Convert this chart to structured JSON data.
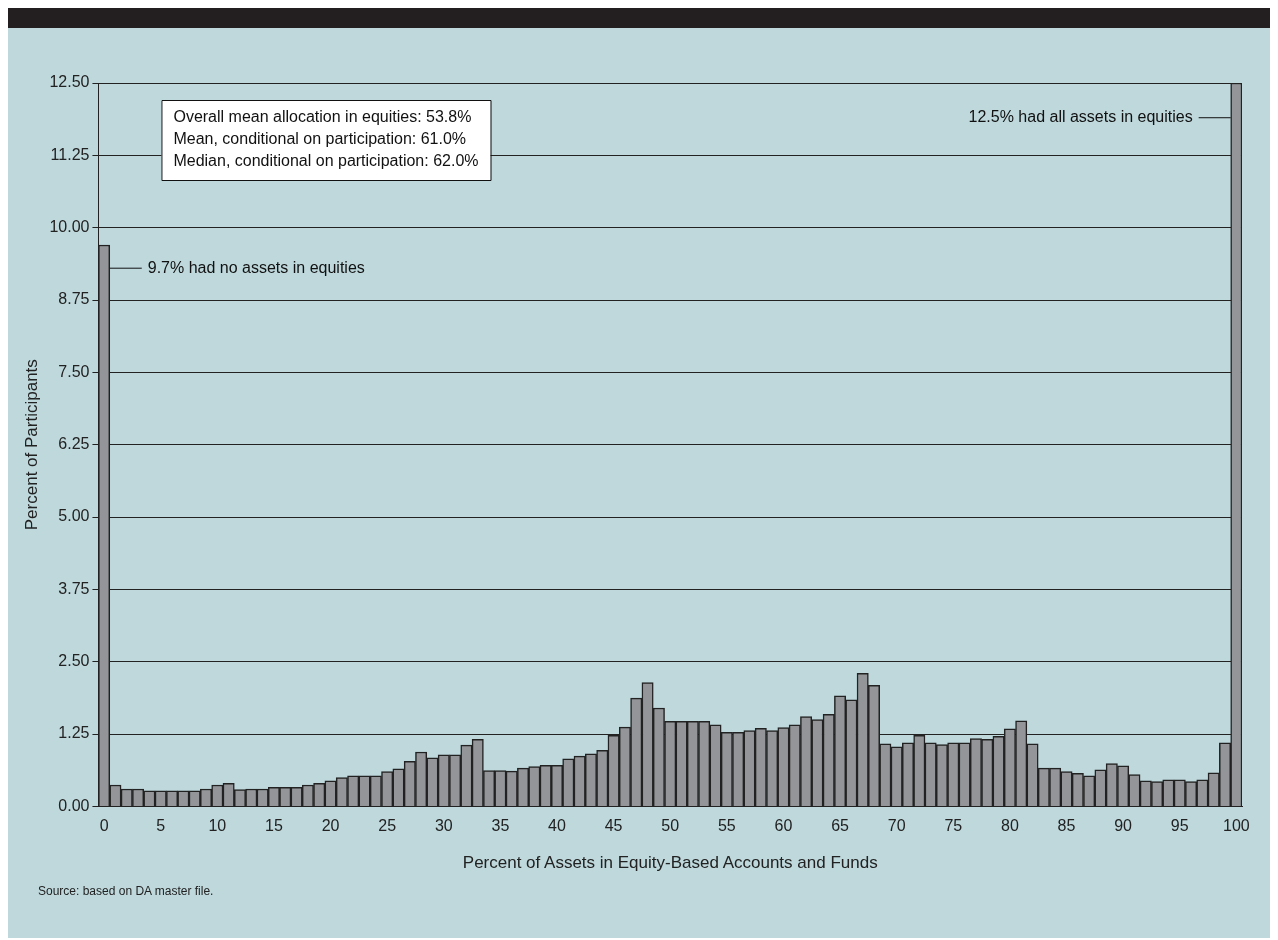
{
  "chart_data": {
    "type": "bar",
    "xlabel": "Percent of Assets in Equity-Based Accounts and Funds",
    "ylabel": "Percent of Participants",
    "categories": [
      "0",
      null,
      null,
      null,
      null,
      "5",
      null,
      null,
      null,
      null,
      "10",
      null,
      null,
      null,
      null,
      "15",
      null,
      null,
      null,
      null,
      "20",
      null,
      null,
      null,
      null,
      "25",
      null,
      null,
      null,
      null,
      "30",
      null,
      null,
      null,
      null,
      "35",
      null,
      null,
      null,
      null,
      "40",
      null,
      null,
      null,
      null,
      "45",
      null,
      null,
      null,
      null,
      "50",
      null,
      null,
      null,
      null,
      "55",
      null,
      null,
      null,
      null,
      "60",
      null,
      null,
      null,
      null,
      "65",
      null,
      null,
      null,
      null,
      "70",
      null,
      null,
      null,
      null,
      "75",
      null,
      null,
      null,
      null,
      "80",
      null,
      null,
      null,
      null,
      "85",
      null,
      null,
      null,
      null,
      "90",
      null,
      null,
      null,
      null,
      "95",
      null,
      null,
      null,
      null,
      "100"
    ],
    "values": [
      9.7,
      0.37,
      0.3,
      0.3,
      0.27,
      0.27,
      0.27,
      0.27,
      0.27,
      0.3,
      0.37,
      0.4,
      0.29,
      0.3,
      0.3,
      0.33,
      0.33,
      0.33,
      0.37,
      0.4,
      0.44,
      0.5,
      0.53,
      0.53,
      0.53,
      0.6,
      0.65,
      0.78,
      0.94,
      0.84,
      0.89,
      0.89,
      1.06,
      1.16,
      0.62,
      0.62,
      0.61,
      0.66,
      0.69,
      0.71,
      0.71,
      0.82,
      0.87,
      0.91,
      0.97,
      1.23,
      1.37,
      1.87,
      2.14,
      1.7,
      1.47,
      1.47,
      1.47,
      1.47,
      1.41,
      1.28,
      1.28,
      1.31,
      1.35,
      1.31,
      1.36,
      1.41,
      1.55,
      1.5,
      1.59,
      1.91,
      1.84,
      2.3,
      2.09,
      1.08,
      1.03,
      1.1,
      1.23,
      1.1,
      1.07,
      1.1,
      1.1,
      1.17,
      1.16,
      1.21,
      1.34,
      1.48,
      1.08,
      0.66,
      0.66,
      0.6,
      0.57,
      0.53,
      0.63,
      0.74,
      0.7,
      0.55,
      0.44,
      0.43,
      0.46,
      0.46,
      0.43,
      0.46,
      0.58,
      1.1,
      12.5
    ],
    "color": "#939598",
    "ylim": [
      0,
      12.5
    ],
    "yticks": [
      {
        "value": 0,
        "label": "0.00"
      },
      {
        "value": 1.25,
        "label": "1.25"
      },
      {
        "value": 2.5,
        "label": "2.50"
      },
      {
        "value": 3.75,
        "label": "3.75"
      },
      {
        "value": 5,
        "label": "5.00"
      },
      {
        "value": 6.25,
        "label": "6.25"
      },
      {
        "value": 7.5,
        "label": "7.50"
      },
      {
        "value": 8.75,
        "label": "8.75"
      },
      {
        "value": 10,
        "label": "10.00"
      },
      {
        "value": 11.25,
        "label": "11.25"
      },
      {
        "value": 12.5,
        "label": "12.50"
      }
    ],
    "grid": "y",
    "legend": false,
    "annotations": [
      "Overall mean allocation in equities: 53.8%",
      "Mean, conditional on participation: 61.0%",
      "Median, conditional on participation: 62.0%",
      {
        "text": "9.7% had no assets in equities",
        "x": "0",
        "y": 9.3
      },
      {
        "text": "12.5% had all assets in equities",
        "x": "100",
        "y": 11.9
      },
      "Source:  based on DA master file."
    ]
  }
}
